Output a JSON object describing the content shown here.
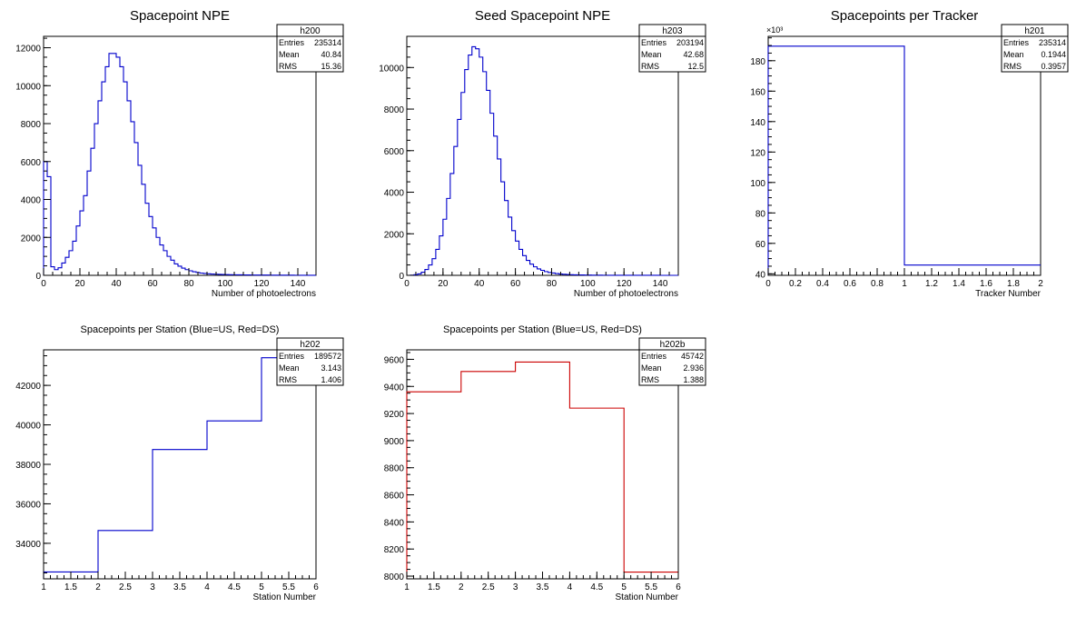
{
  "chart_data": [
    {
      "type": "histogram",
      "title": "Spacepoint NPE",
      "xlabel": "Number of photoelectrons",
      "ylabel": "",
      "xlim": [
        0,
        150
      ],
      "ylim": [
        0,
        12600
      ],
      "x_ticks": [
        0,
        20,
        40,
        60,
        80,
        100,
        120,
        140
      ],
      "y_ticks": [
        0,
        2000,
        4000,
        6000,
        8000,
        10000,
        12000
      ],
      "y_exponent": "",
      "line_color": "#0000cc",
      "bin_edges": [
        0,
        2,
        4,
        6,
        8,
        10,
        12,
        14,
        16,
        18,
        20,
        22,
        24,
        26,
        28,
        30,
        32,
        34,
        36,
        38,
        40,
        42,
        44,
        46,
        48,
        50,
        52,
        54,
        56,
        58,
        60,
        62,
        64,
        66,
        68,
        70,
        72,
        74,
        76,
        78,
        80,
        82,
        84,
        86,
        88,
        90,
        92,
        94,
        96,
        98,
        100,
        102,
        104,
        106,
        108,
        110,
        112,
        114,
        116,
        118,
        120,
        122,
        124,
        126,
        128,
        130,
        132,
        134,
        136,
        138,
        140,
        142,
        144,
        146,
        148,
        150
      ],
      "values": [
        6000,
        5200,
        450,
        300,
        400,
        650,
        950,
        1300,
        1800,
        2600,
        3400,
        4200,
        5500,
        6700,
        8000,
        9200,
        10200,
        11000,
        11700,
        11700,
        11500,
        11000,
        10200,
        9200,
        8100,
        7000,
        5800,
        4800,
        3800,
        3100,
        2500,
        2000,
        1600,
        1300,
        1000,
        800,
        600,
        480,
        380,
        300,
        240,
        190,
        150,
        120,
        100,
        80,
        70,
        60,
        50,
        45,
        40,
        35,
        30,
        28,
        25,
        22,
        20,
        18,
        16,
        15,
        14,
        13,
        12,
        11,
        10,
        9,
        8,
        7,
        7,
        6,
        6,
        5,
        5,
        4,
        4
      ],
      "stats": {
        "name": "h200",
        "entries": "235314",
        "mean": "40.84",
        "rms": "15.36"
      }
    },
    {
      "type": "histogram",
      "title": "Seed Spacepoint NPE",
      "xlabel": "Number of photoelectrons",
      "ylabel": "",
      "xlim": [
        0,
        150
      ],
      "ylim": [
        0,
        11500
      ],
      "x_ticks": [
        0,
        20,
        40,
        60,
        80,
        100,
        120,
        140
      ],
      "y_ticks": [
        0,
        2000,
        4000,
        6000,
        8000,
        10000
      ],
      "y_exponent": "",
      "line_color": "#0000cc",
      "bin_edges": [
        0,
        2,
        4,
        6,
        8,
        10,
        12,
        14,
        16,
        18,
        20,
        22,
        24,
        26,
        28,
        30,
        32,
        34,
        36,
        38,
        40,
        42,
        44,
        46,
        48,
        50,
        52,
        54,
        56,
        58,
        60,
        62,
        64,
        66,
        68,
        70,
        72,
        74,
        76,
        78,
        80,
        82,
        84,
        86,
        88,
        90,
        92,
        94,
        96,
        98,
        100,
        102,
        104,
        106,
        108,
        110,
        112,
        114,
        116,
        118,
        120,
        122,
        124,
        126,
        128,
        130,
        132,
        134,
        136,
        138,
        140,
        142,
        144,
        146,
        148,
        150
      ],
      "values": [
        0,
        10,
        30,
        70,
        150,
        280,
        500,
        800,
        1250,
        1900,
        2700,
        3700,
        4900,
        6200,
        7500,
        8800,
        9900,
        10600,
        11000,
        10900,
        10500,
        9800,
        8900,
        7800,
        6700,
        5600,
        4500,
        3600,
        2800,
        2150,
        1650,
        1250,
        950,
        720,
        540,
        410,
        310,
        240,
        180,
        140,
        110,
        85,
        65,
        50,
        40,
        32,
        26,
        21,
        17,
        14,
        12,
        10,
        8,
        7,
        6,
        5,
        4,
        4,
        3,
        3,
        2,
        2,
        2,
        2,
        1,
        1,
        1,
        1,
        1,
        1,
        0,
        0,
        0,
        0,
        0
      ],
      "stats": {
        "name": "h203",
        "entries": "203194",
        "mean": "42.68",
        "rms": "12.5"
      }
    },
    {
      "type": "histogram",
      "title": "Spacepoints per Tracker",
      "xlabel": "Tracker Number",
      "ylabel": "",
      "xlim": [
        0,
        2
      ],
      "ylim": [
        39,
        196
      ],
      "x_ticks": [
        0,
        0.2,
        0.4,
        0.6,
        0.8,
        1,
        1.2,
        1.4,
        1.6,
        1.8,
        2
      ],
      "y_ticks": [
        40,
        60,
        80,
        100,
        120,
        140,
        160,
        180
      ],
      "y_exponent": "×10³",
      "line_color": "#0000cc",
      "bin_edges": [
        0,
        1,
        2
      ],
      "values": [
        189.572,
        45.742
      ],
      "stats": {
        "name": "h201",
        "entries": "235314",
        "mean": "0.1944",
        "rms": "0.3957"
      }
    },
    {
      "type": "histogram",
      "title": "Spacepoints per Station (Blue=US, Red=DS)",
      "xlabel": "Station Number",
      "ylabel": "",
      "xlim": [
        1,
        6
      ],
      "ylim": [
        32200,
        43800
      ],
      "x_ticks": [
        1,
        1.5,
        2,
        2.5,
        3,
        3.5,
        4,
        4.5,
        5,
        5.5,
        6
      ],
      "y_ticks": [
        34000,
        36000,
        38000,
        40000,
        42000
      ],
      "y_exponent": "",
      "line_color": "#0000cc",
      "bin_edges": [
        1,
        2,
        3,
        4,
        5,
        6
      ],
      "values": [
        32550,
        34650,
        38750,
        40200,
        43400
      ],
      "stats": {
        "name": "h202",
        "entries": "189572",
        "mean": "3.143",
        "rms": "1.406"
      }
    },
    {
      "type": "histogram",
      "title": "Spacepoints per Station (Blue=US, Red=DS)",
      "xlabel": "Station Number",
      "ylabel": "",
      "xlim": [
        1,
        6
      ],
      "ylim": [
        7980,
        9670
      ],
      "x_ticks": [
        1,
        1.5,
        2,
        2.5,
        3,
        3.5,
        4,
        4.5,
        5,
        5.5,
        6
      ],
      "y_ticks": [
        8000,
        8200,
        8400,
        8600,
        8800,
        9000,
        9200,
        9400,
        9600
      ],
      "y_exponent": "",
      "line_color": "#cc0000",
      "bin_edges": [
        1,
        2,
        3,
        4,
        5,
        6
      ],
      "values": [
        9360,
        9510,
        9580,
        9240,
        8030
      ],
      "stats": {
        "name": "h202b",
        "entries": "45742",
        "mean": "2.936",
        "rms": "1.388"
      }
    }
  ],
  "stats_labels": {
    "entries": "Entries",
    "mean": "Mean",
    "rms": "RMS"
  }
}
